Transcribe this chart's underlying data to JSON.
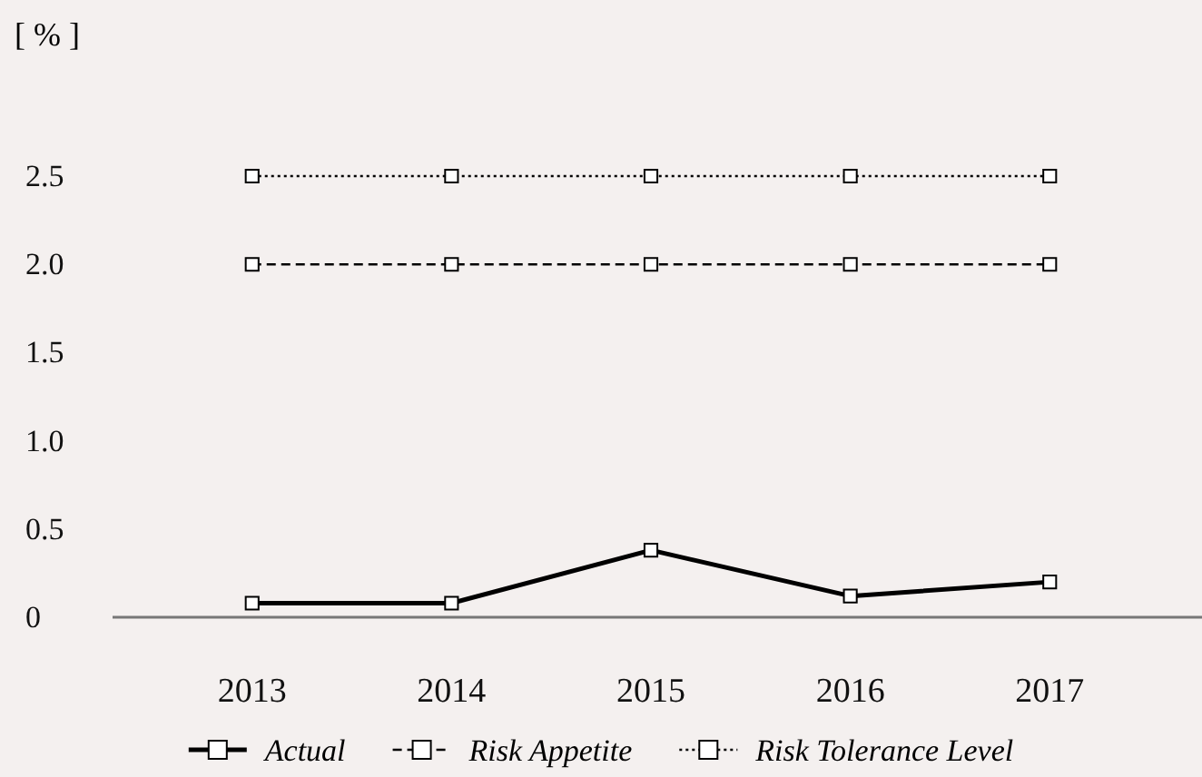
{
  "chart_data": {
    "type": "line",
    "ylabel": "[ % ]",
    "categories": [
      "2013",
      "2014",
      "2015",
      "2016",
      "2017"
    ],
    "series": [
      {
        "name": "Actual",
        "color": "#000000",
        "values": [
          0.08,
          0.08,
          0.38,
          0.12,
          0.2
        ],
        "line_style": "solid"
      },
      {
        "name": "Risk Appetite",
        "color": "#000000",
        "values": [
          2.0,
          2.0,
          2.0,
          2.0,
          2.0
        ],
        "line_style": "dashed"
      },
      {
        "name": "Risk Tolerance Level",
        "color": "#000000",
        "values": [
          2.5,
          2.5,
          2.5,
          2.5,
          2.5
        ],
        "line_style": "dotted"
      }
    ],
    "ylim": [
      0,
      2.5
    ],
    "yticks": [
      0,
      0.5,
      {
        "value": 1,
        "label": "1.0"
      },
      1.5,
      {
        "value": 2,
        "label": "2.0"
      },
      2.5
    ],
    "marker": "square",
    "legend": "bottom",
    "grid": false
  }
}
